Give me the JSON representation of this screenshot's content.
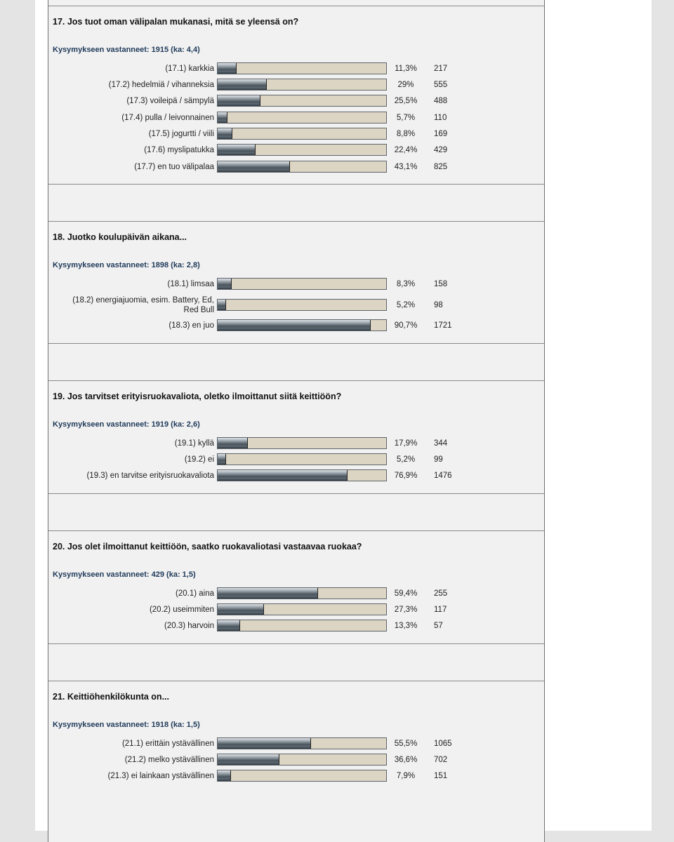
{
  "sections": [
    {
      "title": "17. Jos tuot oman välipalan mukanasi, mitä se yleensä on?",
      "respondents": "Kysymykseen vastanneet: 1915 (ka: 4,4)",
      "labels": [
        "(17.1) karkkia",
        "(17.2) hedelmiä / vihanneksia",
        "(17.3) voileipä / sämpylä",
        "(17.4) pulla / leivonnainen",
        "(17.5) jogurtti / viili",
        "(17.6) myslipatukka",
        "(17.7) en tuo välipalaa"
      ],
      "values": [
        11.3,
        29,
        25.5,
        5.7,
        8.8,
        22.4,
        43.1
      ],
      "value_labels": [
        "11,3%",
        "29%",
        "25,5%",
        "5,7%",
        "8,8%",
        "22,4%",
        "43,1%"
      ],
      "counts": [
        217,
        555,
        488,
        110,
        169,
        429,
        825
      ]
    },
    {
      "title": "18. Juotko koulupäivän aikana...",
      "respondents": "Kysymykseen vastanneet: 1898 (ka: 2,8)",
      "labels": [
        "(18.1) limsaa",
        "(18.2) energiajuomia, esim. Battery, Ed, Red Bull",
        "(18.3) en juo"
      ],
      "values": [
        8.3,
        5.2,
        90.7
      ],
      "value_labels": [
        "8,3%",
        "5,2%",
        "90,7%"
      ],
      "counts": [
        158,
        98,
        1721
      ]
    },
    {
      "title": "19. Jos tarvitset erityisruokavaliota, oletko ilmoittanut siitä keittiöön?",
      "respondents": "Kysymykseen vastanneet: 1919 (ka: 2,6)",
      "labels": [
        "(19.1) kyllä",
        "(19.2) ei",
        "(19.3) en tarvitse erityisruokavaliota"
      ],
      "values": [
        17.9,
        5.2,
        76.9
      ],
      "value_labels": [
        "17,9%",
        "5,2%",
        "76,9%"
      ],
      "counts": [
        344,
        99,
        1476
      ]
    },
    {
      "title": "20. Jos olet ilmoittanut keittiöön, saatko ruokavaliotasi vastaavaa ruokaa?",
      "respondents": "Kysymykseen vastanneet: 429 (ka: 1,5)",
      "labels": [
        "(20.1) aina",
        "(20.2) useimmiten",
        "(20.3) harvoin"
      ],
      "values": [
        59.4,
        27.3,
        13.3
      ],
      "value_labels": [
        "59,4%",
        "27,3%",
        "13,3%"
      ],
      "counts": [
        255,
        117,
        57
      ]
    },
    {
      "title": "21. Keittiöhenkilökunta on...",
      "respondents": "Kysymykseen vastanneet: 1918 (ka: 1,5)",
      "labels": [
        "(21.1) erittäin ystävällinen",
        "(21.2) melko ystävällinen",
        "(21.3) ei lainkaan ystävällinen"
      ],
      "values": [
        55.5,
        36.6,
        7.9
      ],
      "value_labels": [
        "55,5%",
        "36,6%",
        "7,9%"
      ],
      "counts": [
        1065,
        702,
        151
      ]
    }
  ]
}
